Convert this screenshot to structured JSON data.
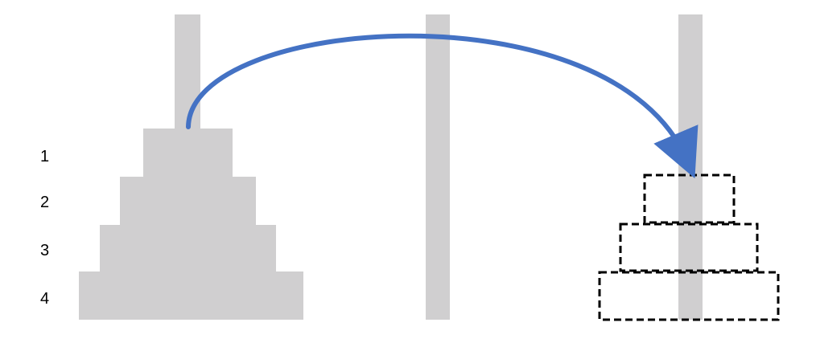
{
  "diagram": {
    "title": "",
    "disk_labels": [
      "1",
      "2",
      "3",
      "4"
    ],
    "pegs": [
      {
        "name": "source-peg"
      },
      {
        "name": "auxiliary-peg"
      },
      {
        "name": "target-peg"
      }
    ],
    "source_disks": 4,
    "target_outline_disks": 3,
    "move_arrow": {
      "from": "source-peg",
      "to": "target-peg"
    }
  },
  "colors": {
    "peg": "#d0cfd0",
    "disk": "#d0cfd0",
    "arrow": "#4472c4",
    "outline": "#000000",
    "label": "#000000"
  }
}
